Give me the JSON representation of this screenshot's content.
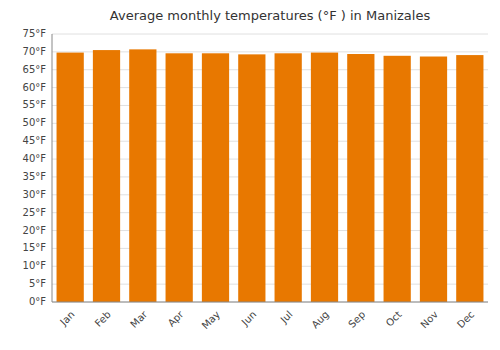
{
  "chart_data": {
    "type": "bar",
    "title": "Average monthly temperatures (°F ) in Manizales",
    "categories": [
      "Jan",
      "Feb",
      "Mar",
      "Apr",
      "May",
      "Jun",
      "Jul",
      "Aug",
      "Sep",
      "Oct",
      "Nov",
      "Dec"
    ],
    "values": [
      69.8,
      70.5,
      70.7,
      69.6,
      69.6,
      69.3,
      69.6,
      69.8,
      69.4,
      68.9,
      68.7,
      69.1
    ],
    "color": "#E87800",
    "ylim": [
      0,
      75
    ],
    "yticks": [
      {
        "value": 0,
        "label": "0°F"
      },
      {
        "value": 5,
        "label": "5°F"
      },
      {
        "value": 10,
        "label": "10°F"
      },
      {
        "value": 15,
        "label": "15°F"
      },
      {
        "value": 20,
        "label": "20°F"
      },
      {
        "value": 25,
        "label": "25°F"
      },
      {
        "value": 30,
        "label": "30°F"
      },
      {
        "value": 35,
        "label": "35°F"
      },
      {
        "value": 40,
        "label": "40°F"
      },
      {
        "value": 45,
        "label": "45°F"
      },
      {
        "value": 50,
        "label": "50°F"
      },
      {
        "value": 55,
        "label": "55°F"
      },
      {
        "value": 60,
        "label": "60°F"
      },
      {
        "value": 65,
        "label": "65°F"
      },
      {
        "value": 70,
        "label": "70°F"
      },
      {
        "value": 75,
        "label": "75°F"
      }
    ],
    "grid": true
  }
}
